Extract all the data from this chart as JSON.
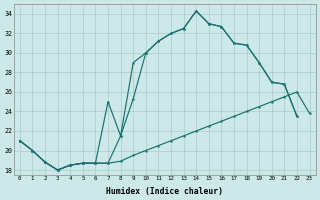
{
  "background_color": "#cce8e8",
  "grid_color": "#aacccc",
  "line_color": "#1a7070",
  "xlim": [
    -0.5,
    23.5
  ],
  "ylim": [
    17.5,
    35.0
  ],
  "xticks": [
    0,
    1,
    2,
    3,
    4,
    5,
    6,
    7,
    8,
    9,
    10,
    11,
    12,
    13,
    14,
    15,
    16,
    17,
    18,
    19,
    20,
    21,
    22,
    23
  ],
  "yticks": [
    18,
    20,
    22,
    24,
    26,
    28,
    30,
    32,
    34
  ],
  "xlabel": "Humidex (Indice chaleur)",
  "line1_x": [
    0,
    1,
    2,
    3,
    4,
    5,
    6,
    7,
    8,
    9,
    10,
    11,
    12,
    13,
    14,
    15,
    16,
    17,
    18,
    19,
    20,
    21,
    22,
    23
  ],
  "line1_y": [
    21.0,
    20.0,
    18.8,
    18.0,
    18.5,
    18.7,
    18.7,
    18.7,
    18.9,
    19.5,
    20.0,
    20.5,
    21.0,
    21.5,
    22.0,
    22.5,
    23.0,
    23.5,
    24.0,
    24.5,
    25.0,
    25.5,
    26.0,
    23.8
  ],
  "line2_x": [
    0,
    1,
    2,
    3,
    4,
    5,
    6,
    7,
    8,
    9,
    10,
    11,
    12,
    13,
    14,
    15,
    16,
    17,
    18,
    19,
    20,
    21,
    22
  ],
  "line2_y": [
    21.0,
    20.0,
    18.8,
    18.0,
    18.5,
    18.7,
    18.7,
    18.7,
    21.5,
    25.3,
    30.0,
    31.2,
    32.0,
    32.5,
    34.3,
    33.0,
    32.7,
    31.0,
    30.8,
    29.0,
    27.0,
    26.8,
    23.5
  ],
  "line3_x": [
    0,
    1,
    2,
    3,
    4,
    5,
    6,
    7,
    8,
    9,
    10,
    11,
    12,
    13,
    14,
    15,
    16,
    17,
    18,
    19,
    20,
    21,
    22
  ],
  "line3_y": [
    21.0,
    20.0,
    18.8,
    18.0,
    18.5,
    18.7,
    18.7,
    25.0,
    21.5,
    29.0,
    30.0,
    31.2,
    32.0,
    32.5,
    34.3,
    33.0,
    32.7,
    31.0,
    30.8,
    29.0,
    27.0,
    26.8,
    23.5
  ]
}
